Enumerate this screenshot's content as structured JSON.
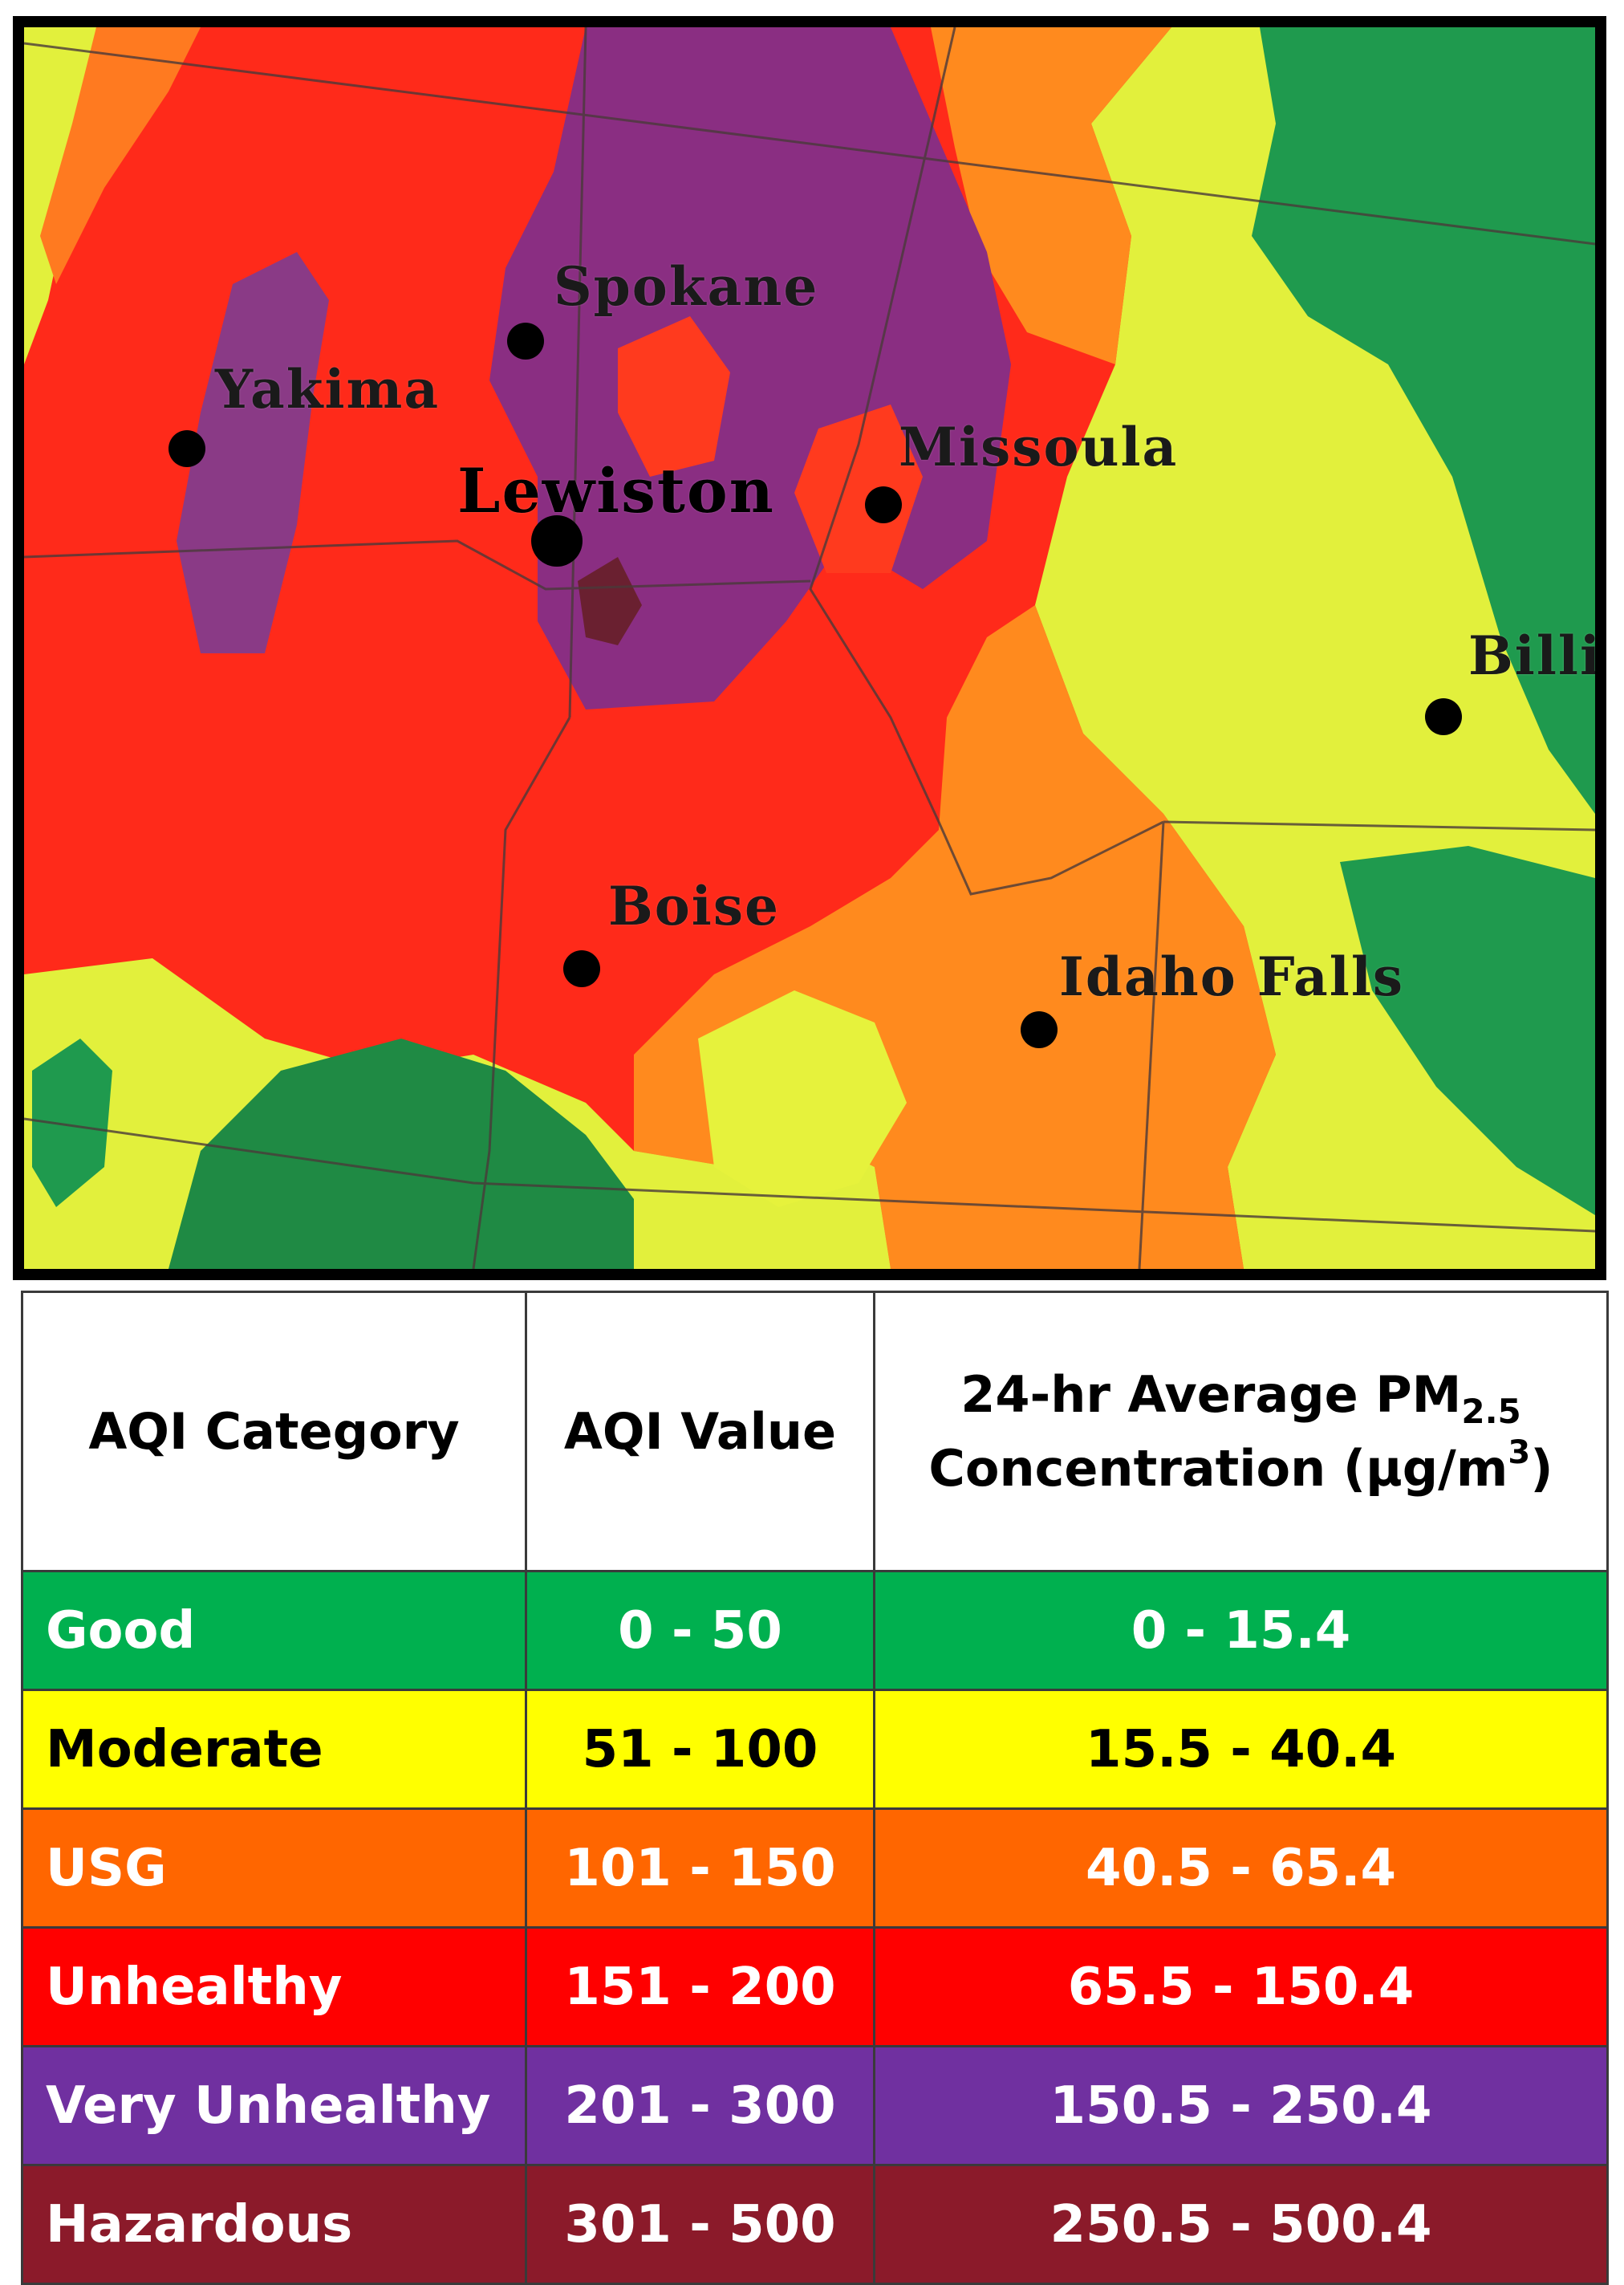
{
  "map": {
    "cities": [
      {
        "name": "Spokane",
        "label": "Spokane"
      },
      {
        "name": "Yakima",
        "label": "Yakima"
      },
      {
        "name": "Lewiston",
        "label": "Lewiston"
      },
      {
        "name": "Missoula",
        "label": "Missoula"
      },
      {
        "name": "Billings",
        "label": "Billi"
      },
      {
        "name": "Boise",
        "label": "Boise"
      },
      {
        "name": "Idaho Falls",
        "label": "Idaho Falls"
      }
    ],
    "colors": {
      "good": "#1a9a4a",
      "moderate": "#e6f23c",
      "usg": "#ff8a1e",
      "unhealthy": "#ff2a1a",
      "very_unhealthy": "#8a2e82",
      "hazardous": "#6a2030"
    }
  },
  "table": {
    "headers": {
      "category": "AQI Category",
      "value": "AQI Value",
      "pm_line1": "24-hr Average PM",
      "pm_sub": "2.5",
      "pm_line2": "Concentration (µg/m",
      "pm_sup": "3",
      "pm_end": ")"
    },
    "rows": [
      {
        "category": "Good",
        "aqi": "0 - 50",
        "pm": "0 - 15.4",
        "bg": "#00b04f",
        "fg": "#ffffff"
      },
      {
        "category": "Moderate",
        "aqi": "51 - 100",
        "pm": "15.5 - 40.4",
        "bg": "#ffff00",
        "fg": "#000000"
      },
      {
        "category": "USG",
        "aqi": "101 - 150",
        "pm": "40.5 - 65.4",
        "bg": "#ff6600",
        "fg": "#ffffff"
      },
      {
        "category": "Unhealthy",
        "aqi": "151 - 200",
        "pm": "65.5 - 150.4",
        "bg": "#ff0000",
        "fg": "#ffffff"
      },
      {
        "category": "Very Unhealthy",
        "aqi": "201 - 300",
        "pm": "150.5 - 250.4",
        "bg": "#7030a0",
        "fg": "#ffffff"
      },
      {
        "category": "Hazardous",
        "aqi": "301 - 500",
        "pm": "250.5 - 500.4",
        "bg": "#8b1a2a",
        "fg": "#ffffff"
      }
    ]
  }
}
